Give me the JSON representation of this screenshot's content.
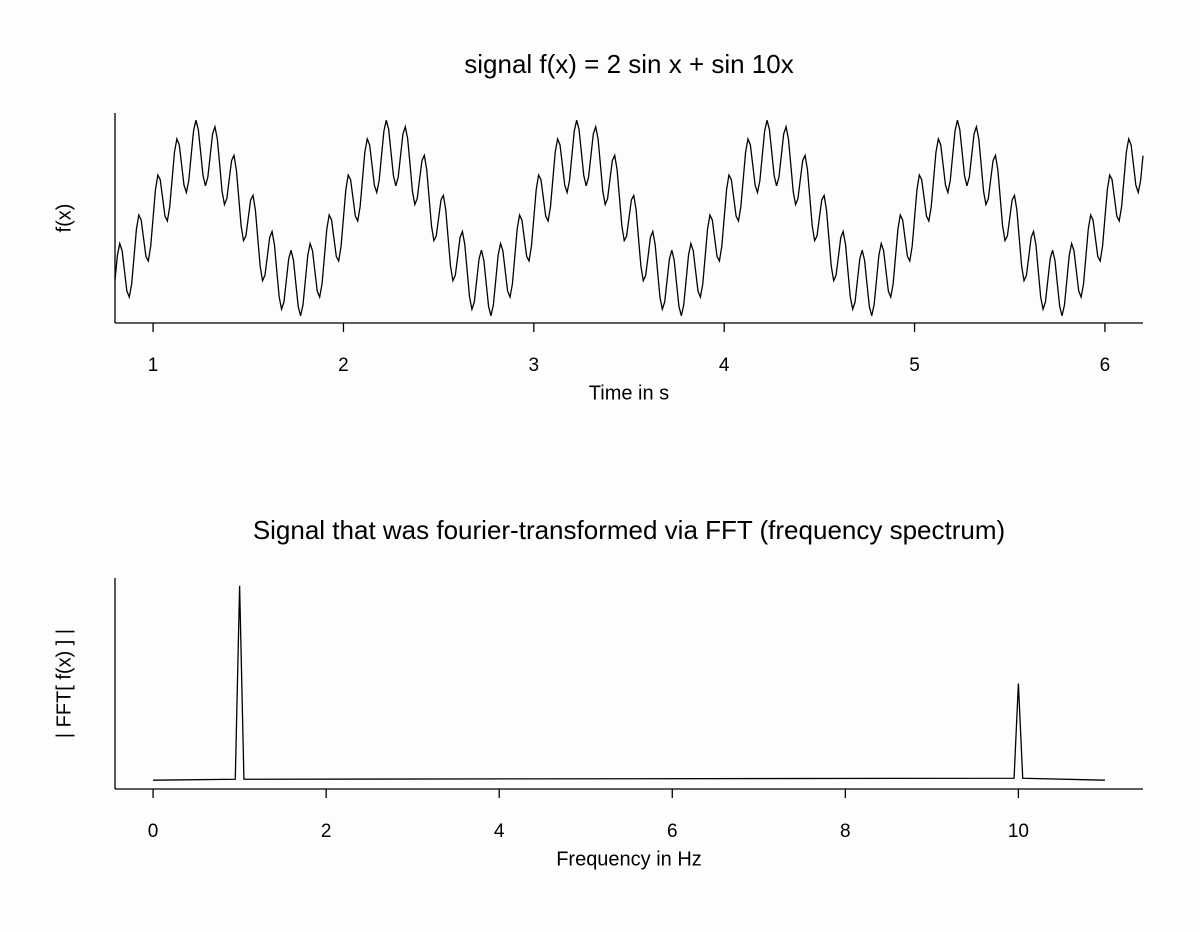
{
  "chart_data": [
    {
      "type": "line",
      "title": "signal f(x) = 2 sin x  +  sin 10x",
      "x_label": "Time in s",
      "y_label": "f(x)",
      "xlim": [
        0.8,
        6.2
      ],
      "ylim": [
        -3.2,
        3.2
      ],
      "xticks": [
        1,
        2,
        3,
        4,
        5,
        6
      ],
      "color": "#000000",
      "x": [
        0.8,
        0.8125,
        0.825,
        0.8375,
        0.85,
        0.8625,
        0.875,
        0.8875,
        0.9,
        0.9125,
        0.925,
        0.9375,
        0.95,
        0.9625,
        0.975,
        0.9875,
        1,
        1.0125,
        1.025,
        1.0375,
        1.05,
        1.0625,
        1.075,
        1.0875,
        1.1,
        1.1125,
        1.125,
        1.1375,
        1.15,
        1.1625,
        1.175,
        1.1875,
        1.2,
        1.2125,
        1.225,
        1.2375,
        1.25,
        1.2625,
        1.275,
        1.2875,
        1.3,
        1.3125,
        1.325,
        1.3375,
        1.35,
        1.3625,
        1.375,
        1.3875,
        1.4,
        1.4125,
        1.425,
        1.4375,
        1.45,
        1.4625,
        1.475,
        1.4875,
        1.5,
        1.5125,
        1.525,
        1.5375,
        1.55,
        1.5625,
        1.575,
        1.5875,
        1.6,
        1.6125,
        1.625,
        1.6375,
        1.65,
        1.6625,
        1.675,
        1.6875,
        1.7,
        1.7125,
        1.725,
        1.7375,
        1.75,
        1.7625,
        1.775,
        1.7875,
        1.8,
        1.8125,
        1.825,
        1.8375,
        1.85,
        1.8625,
        1.875,
        1.8875,
        1.9,
        1.9125,
        1.925,
        1.9375,
        1.95,
        1.9625,
        1.975,
        1.9875,
        2,
        2.0125,
        2.025,
        2.0375,
        2.05,
        2.0625,
        2.075,
        2.0875,
        2.1,
        2.1125,
        2.125,
        2.1375,
        2.15,
        2.1625,
        2.175,
        2.1875,
        2.2,
        2.2125,
        2.225,
        2.2375,
        2.25,
        2.2625,
        2.275,
        2.2875,
        2.3,
        2.3125,
        2.325,
        2.3375,
        2.35,
        2.3625,
        2.375,
        2.3875,
        2.4,
        2.4125,
        2.425,
        2.4375,
        2.45,
        2.4625,
        2.475,
        2.4875,
        2.5,
        2.5125,
        2.525,
        2.5375,
        2.55,
        2.5625,
        2.575,
        2.5875,
        2.6,
        2.6125,
        2.625,
        2.6375,
        2.65,
        2.6625,
        2.675,
        2.6875,
        2.7,
        2.7125,
        2.725,
        2.7375,
        2.75,
        2.7625,
        2.775,
        2.7875,
        2.8,
        2.8125,
        2.825,
        2.8375,
        2.85,
        2.8625,
        2.875,
        2.8875,
        2.9,
        2.9125,
        2.925,
        2.9375,
        2.95,
        2.9625,
        2.975,
        2.9875,
        3,
        3.0125,
        3.025,
        3.0375,
        3.05,
        3.0625,
        3.075,
        3.0875,
        3.1,
        3.1125,
        3.125,
        3.1375,
        3.15,
        3.1625,
        3.175,
        3.1875,
        3.2,
        3.2125,
        3.225,
        3.2375,
        3.25,
        3.2625,
        3.275,
        3.2875,
        3.3,
        3.3125,
        3.325,
        3.3375,
        3.35,
        3.3625,
        3.375,
        3.3875,
        3.4,
        3.4125,
        3.425,
        3.4375,
        3.45,
        3.4625,
        3.475,
        3.4875,
        3.5,
        3.5125,
        3.525,
        3.5375,
        3.55,
        3.5625,
        3.575,
        3.5875,
        3.6,
        3.6125,
        3.625,
        3.6375,
        3.65,
        3.6625,
        3.675,
        3.6875,
        3.7,
        3.7125,
        3.725,
        3.7375,
        3.75,
        3.7625,
        3.775,
        3.7875,
        3.8,
        3.8125,
        3.825,
        3.8375,
        3.85,
        3.8625,
        3.875,
        3.8875,
        3.9,
        3.9125,
        3.925,
        3.9375,
        3.95,
        3.9625,
        3.975,
        3.9875,
        4,
        4.0125,
        4.025,
        4.0375,
        4.05,
        4.0625,
        4.075,
        4.0875,
        4.1,
        4.1125,
        4.125,
        4.1375,
        4.15,
        4.1625,
        4.175,
        4.1875,
        4.2,
        4.2125,
        4.225,
        4.2375,
        4.25,
        4.2625,
        4.275,
        4.2875,
        4.3,
        4.3125,
        4.325,
        4.3375,
        4.35,
        4.3625,
        4.375,
        4.3875,
        4.4,
        4.4125,
        4.425,
        4.4375,
        4.45,
        4.4625,
        4.475,
        4.4875,
        4.5,
        4.5125,
        4.525,
        4.5375,
        4.55,
        4.5625,
        4.575,
        4.5875,
        4.6,
        4.6125,
        4.625,
        4.6375,
        4.65,
        4.6625,
        4.675,
        4.6875,
        4.7,
        4.7125,
        4.725,
        4.7375,
        4.75,
        4.7625,
        4.775,
        4.7875,
        4.8,
        4.8125,
        4.825,
        4.8375,
        4.85,
        4.8625,
        4.875,
        4.8875,
        4.9,
        4.9125,
        4.925,
        4.9375,
        4.95,
        4.9625,
        4.975,
        4.9875,
        5,
        5.0125,
        5.025,
        5.0375,
        5.05,
        5.0625,
        5.075,
        5.0875,
        5.1,
        5.1125,
        5.125,
        5.1375,
        5.15,
        5.1625,
        5.175,
        5.1875,
        5.2,
        5.2125,
        5.225,
        5.2375,
        5.25,
        5.2625,
        5.275,
        5.2875,
        5.3,
        5.3125,
        5.325,
        5.3375,
        5.35,
        5.3625,
        5.375,
        5.3875,
        5.4,
        5.4125,
        5.425,
        5.4375,
        5.45,
        5.4625,
        5.475,
        5.4875,
        5.5,
        5.5125,
        5.525,
        5.5375,
        5.55,
        5.5625,
        5.575,
        5.5875,
        5.6,
        5.6125,
        5.625,
        5.6375,
        5.65,
        5.6625,
        5.675,
        5.6875,
        5.7,
        5.7125,
        5.725,
        5.7375,
        5.75,
        5.7625,
        5.775,
        5.7875,
        5.8,
        5.8125,
        5.825,
        5.8375,
        5.85,
        5.8625,
        5.875,
        5.8875,
        5.9,
        5.9125,
        5.925,
        5.9375,
        5.95,
        5.9625,
        5.975,
        5.9875,
        6,
        6.0125,
        6.025,
        6.0375,
        6.05,
        6.0625,
        6.075,
        6.0875,
        6.1,
        6.1125,
        6.125,
        6.1375,
        6.15,
        6.1625,
        6.175,
        6.1875,
        6.2
      ],
      "values": [
        -1.9,
        -1.14,
        -0.78,
        -1,
        -1.62,
        -2.23,
        -2.41,
        -2.01,
        -1.18,
        -0.34,
        0.09,
        -0.06,
        -0.62,
        -1.17,
        -1.31,
        -0.86,
        0,
        0.86,
        1.31,
        1.17,
        0.62,
        0.06,
        -0.09,
        0.34,
        1.18,
        2.01,
        2.41,
        2.23,
        1.62,
        1,
        0.78,
        1.14,
        1.9,
        2.65,
        2.98,
        2.7,
        2,
        1.29,
        0.98,
        1.24,
        1.9,
        2.56,
        2.78,
        2.41,
        1.62,
        0.81,
        0.41,
        0.59,
        1.18,
        1.75,
        1.91,
        1.47,
        0.62,
        -0.24,
        -0.69,
        -0.55,
        0,
        0.55,
        0.69,
        0.24,
        -0.62,
        -1.47,
        -1.91,
        -1.75,
        -1.18,
        -0.59,
        -0.41,
        -0.81,
        -1.62,
        -2.41,
        -2.78,
        -2.56,
        -1.9,
        -1.24,
        -0.98,
        -1.29,
        -2,
        -2.7,
        -2.98,
        -2.65,
        -1.9,
        -1.14,
        -0.78,
        -1,
        -1.62,
        -2.23,
        -2.41,
        -2.01,
        -1.18,
        -0.34,
        0.09,
        -0.06,
        -0.62,
        -1.17,
        -1.31,
        -0.86,
        0,
        0.86,
        1.31,
        1.17,
        0.62,
        0.06,
        -0.09,
        0.34,
        1.18,
        2.01,
        2.41,
        2.23,
        1.62,
        1,
        0.78,
        1.14,
        1.9,
        2.65,
        2.98,
        2.7,
        2,
        1.29,
        0.98,
        1.24,
        1.9,
        2.56,
        2.78,
        2.41,
        1.62,
        0.81,
        0.41,
        0.59,
        1.18,
        1.75,
        1.91,
        1.47,
        0.62,
        -0.24,
        -0.69,
        -0.55,
        0,
        0.55,
        0.69,
        0.24,
        -0.62,
        -1.47,
        -1.91,
        -1.75,
        -1.18,
        -0.59,
        -0.41,
        -0.81,
        -1.62,
        -2.41,
        -2.78,
        -2.56,
        -1.9,
        -1.24,
        -0.98,
        -1.29,
        -2,
        -2.7,
        -2.98,
        -2.65,
        -1.9,
        -1.14,
        -0.78,
        -1,
        -1.62,
        -2.23,
        -2.41,
        -2.01,
        -1.18,
        -0.34,
        0.09,
        -0.06,
        -0.62,
        -1.17,
        -1.31,
        -0.86,
        0,
        0.86,
        1.31,
        1.17,
        0.62,
        0.06,
        -0.09,
        0.34,
        1.18,
        2.01,
        2.41,
        2.23,
        1.62,
        1,
        0.78,
        1.14,
        1.9,
        2.65,
        2.98,
        2.7,
        2,
        1.29,
        0.98,
        1.24,
        1.9,
        2.56,
        2.78,
        2.41,
        1.62,
        0.81,
        0.41,
        0.59,
        1.18,
        1.75,
        1.91,
        1.47,
        0.62,
        -0.24,
        -0.69,
        -0.55,
        0,
        0.55,
        0.69,
        0.24,
        -0.62,
        -1.47,
        -1.91,
        -1.75,
        -1.18,
        -0.59,
        -0.41,
        -0.81,
        -1.62,
        -2.41,
        -2.78,
        -2.56,
        -1.9,
        -1.24,
        -0.98,
        -1.29,
        -2,
        -2.7,
        -2.98,
        -2.65,
        -1.9,
        -1.14,
        -0.78,
        -1,
        -1.62,
        -2.23,
        -2.41,
        -2.01,
        -1.18,
        -0.34,
        0.09,
        -0.06,
        -0.62,
        -1.17,
        -1.31,
        -0.86,
        0,
        0.86,
        1.31,
        1.17,
        0.62,
        0.06,
        -0.09,
        0.34,
        1.18,
        2.01,
        2.41,
        2.23,
        1.62,
        1,
        0.78,
        1.14,
        1.9,
        2.65,
        2.98,
        2.7,
        2,
        1.29,
        0.98,
        1.24,
        1.9,
        2.56,
        2.78,
        2.41,
        1.62,
        0.81,
        0.41,
        0.59,
        1.18,
        1.75,
        1.91,
        1.47,
        0.62,
        -0.24,
        -0.69,
        -0.55,
        0,
        0.55,
        0.69,
        0.24,
        -0.62,
        -1.47,
        -1.91,
        -1.75,
        -1.18,
        -0.59,
        -0.41,
        -0.81,
        -1.62,
        -2.41,
        -2.78,
        -2.56,
        -1.9,
        -1.24,
        -0.98,
        -1.29,
        -2,
        -2.7,
        -2.98,
        -2.65,
        -1.9,
        -1.14,
        -0.78,
        -1,
        -1.62,
        -2.23,
        -2.41,
        -2.01,
        -1.18,
        -0.34,
        0.09,
        -0.06,
        -0.62,
        -1.17,
        -1.31,
        -0.86,
        0,
        0.86,
        1.31,
        1.17,
        0.62,
        0.06,
        -0.09,
        0.34,
        1.18,
        2.01,
        2.41,
        2.23,
        1.62,
        1,
        0.78,
        1.14,
        1.9,
        2.65,
        2.98,
        2.7,
        2,
        1.29,
        0.98,
        1.24,
        1.9,
        2.56,
        2.78,
        2.41,
        1.62,
        0.81,
        0.41,
        0.59,
        1.18,
        1.75,
        1.91,
        1.47,
        0.62,
        -0.24,
        -0.69,
        -0.55,
        0,
        0.55,
        0.69,
        0.24,
        -0.62,
        -1.47,
        -1.91,
        -1.75,
        -1.18,
        -0.59,
        -0.41,
        -0.81,
        -1.62,
        -2.41,
        -2.78,
        -2.56,
        -1.9,
        -1.24,
        -0.98,
        -1.29,
        -2,
        -2.7,
        -2.98,
        -2.65,
        -1.9,
        -1.14,
        -0.78,
        -1,
        -1.62,
        -2.23,
        -2.41,
        -2.01,
        -1.18,
        -0.34,
        0.09,
        -0.06,
        -0.62,
        -1.17,
        -1.31,
        -0.86,
        0,
        0.86,
        1.31,
        1.17,
        0.62,
        0.06,
        -0.09,
        0.34,
        1.18,
        2.01,
        2.41,
        2.23,
        1.62,
        1,
        0.78,
        1.14,
        1.9
      ]
    },
    {
      "type": "line",
      "title": "Signal that was fourier-transformed via FFT (frequency spectrum)",
      "x_label": "Frequency in Hz",
      "y_label": "| FFT[ f(x) ] |",
      "xlim": [
        -0.44,
        11.44
      ],
      "ylim": [
        -0.08,
        2.08
      ],
      "xticks": [
        0,
        2,
        4,
        6,
        8,
        10
      ],
      "color": "#000000",
      "x": [
        0,
        0.95,
        1,
        1.05,
        9.95,
        10,
        10.05,
        11
      ],
      "values": [
        0.01,
        0.02,
        2,
        0.02,
        0.03,
        1,
        0.03,
        0.01
      ]
    }
  ]
}
